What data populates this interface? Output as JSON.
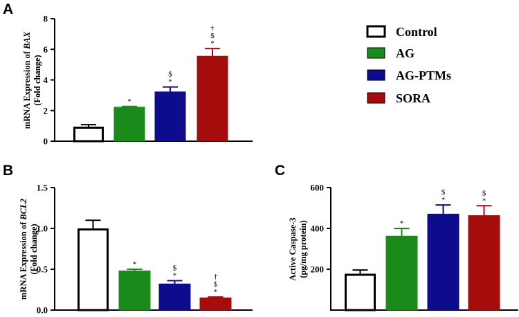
{
  "legend": [
    {
      "label": "Control",
      "color": "#ffffff"
    },
    {
      "label": "AG",
      "color": "#1a8a1a"
    },
    {
      "label": "AG-PTMs",
      "color": "#0c0c8c"
    },
    {
      "label": "SORA",
      "color": "#a50c0c"
    }
  ],
  "chart_data": [
    {
      "type": "bar",
      "panel": "A",
      "ylabel_line1_prefix": "mRNA Expression of ",
      "ylabel_line1_gene": "BAX",
      "ylabel_line2": "(Fold change)",
      "ylim": [
        0,
        8
      ],
      "yticks": [
        "0",
        "2",
        "4",
        "6",
        "8"
      ],
      "ytick_values": [
        0,
        2,
        4,
        6,
        8
      ],
      "categories": [
        "Control",
        "AG",
        "AG-PTMs",
        "SORA"
      ],
      "values": [
        0.95,
        2.22,
        3.22,
        5.55
      ],
      "errors": [
        0.13,
        0.05,
        0.32,
        0.5
      ],
      "annotations": [
        [],
        [
          "*"
        ],
        [
          "$",
          "*"
        ],
        [
          "†",
          "$",
          "*"
        ]
      ]
    },
    {
      "type": "bar",
      "panel": "B",
      "ylabel_line1_prefix": "mRNA Expression of ",
      "ylabel_line1_gene": "BCL2",
      "ylabel_line2": "(Fold change)",
      "ylim": [
        0,
        1.5
      ],
      "yticks": [
        "0.0",
        "0.5",
        "1.0",
        "1.5"
      ],
      "ytick_values": [
        0,
        0.5,
        1.0,
        1.5
      ],
      "categories": [
        "Control",
        "AG",
        "AG-PTMs",
        "SORA"
      ],
      "values": [
        1.0,
        0.48,
        0.32,
        0.15
      ],
      "errors": [
        0.1,
        0.02,
        0.04,
        0.01
      ],
      "annotations": [
        [],
        [
          "*"
        ],
        [
          "$",
          "*"
        ],
        [
          "†",
          "$",
          "*"
        ]
      ]
    },
    {
      "type": "bar",
      "panel": "C",
      "ylabel_line1_prefix": "Active Caspase-3",
      "ylabel_line1_gene": "",
      "ylabel_line2": "(pg/mg protein)",
      "ylim": [
        0,
        600
      ],
      "yticks": [
        "200",
        "400",
        "600"
      ],
      "ytick_values": [
        200,
        400,
        600
      ],
      "categories": [
        "Control",
        "AG",
        "AG-PTMs",
        "SORA"
      ],
      "values": [
        178,
        362,
        470,
        463
      ],
      "errors": [
        18,
        38,
        45,
        48
      ],
      "annotations": [
        [],
        [
          "*"
        ],
        [
          "$",
          "*"
        ],
        [
          "$",
          "*"
        ]
      ]
    }
  ]
}
